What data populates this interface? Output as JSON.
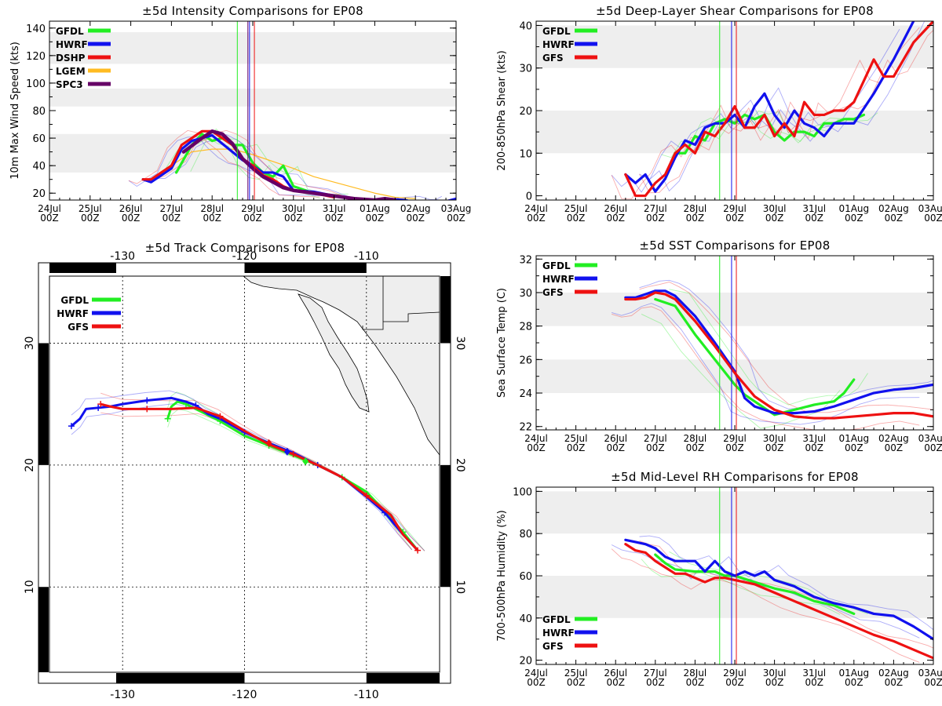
{
  "colors": {
    "GFDL": "#22ee22",
    "HWRF": "#1111ee",
    "DSHP": "#ee1111",
    "GFS": "#ee1111",
    "LGEM": "#ffbb22",
    "SPC3": "#660066",
    "band": "#eeeeee"
  },
  "time_axis": {
    "days": [
      "24Jul",
      "25Jul",
      "26Jul",
      "27Jul",
      "28Jul",
      "29Jul",
      "30Jul",
      "31Jul",
      "01Aug",
      "02Aug",
      "03Aug"
    ],
    "hour": "00Z",
    "domain": [
      0,
      10
    ],
    "marker_lines": [
      {
        "model": "GFDL",
        "t": 4.62
      },
      {
        "model": "SPC3",
        "t": 4.88
      },
      {
        "model": "HWRF",
        "t": 4.92
      },
      {
        "model": "DSHP",
        "t": 5.04
      }
    ]
  },
  "chart_data": [
    {
      "id": "intensity",
      "type": "line",
      "title": "±5d Intensity Comparisons for EP08",
      "ylabel": "10m Max Wind Speed (kts)",
      "ylim": [
        15,
        145
      ],
      "yticks": [
        "20",
        "40",
        "60",
        "80",
        "100",
        "120",
        "140"
      ],
      "bands": [
        [
          35,
          63
        ],
        [
          83,
          96
        ],
        [
          114,
          137
        ]
      ],
      "legend": [
        "GFDL",
        "HWRF",
        "DSHP",
        "LGEM",
        "SPC3"
      ],
      "series": [
        {
          "name": "GFDL",
          "x": [
            3.12,
            3.5,
            3.75,
            4,
            4.25,
            4.5,
            4.75,
            5,
            5.25,
            5.5,
            5.75,
            6,
            6.5,
            7
          ],
          "y": [
            35,
            55,
            63,
            58,
            60,
            55,
            55,
            42,
            35,
            32,
            40,
            25,
            20,
            18
          ]
        },
        {
          "name": "HWRF",
          "x": [
            2.3,
            2.5,
            3,
            3.25,
            3.5,
            3.75,
            4,
            4.25,
            4.5,
            4.75,
            5,
            5.25,
            5.5,
            5.75,
            6,
            6.5,
            7,
            7.5,
            8,
            8.25,
            8.75,
            9,
            9.75,
            10
          ],
          "y": [
            30,
            28,
            38,
            52,
            58,
            60,
            62,
            56,
            50,
            44,
            40,
            35,
            35,
            32,
            22,
            21,
            18,
            16,
            15,
            16,
            15,
            13,
            14,
            16
          ]
        },
        {
          "name": "DSHP",
          "x": [
            2.3,
            2.5,
            3,
            3.25,
            3.5,
            3.75,
            4,
            4.25,
            4.5,
            4.75,
            5,
            5.25,
            5.5,
            5.75,
            6,
            6.5,
            7
          ],
          "y": [
            30,
            30,
            40,
            55,
            60,
            65,
            65,
            60,
            55,
            45,
            40,
            33,
            30,
            25,
            22,
            20,
            17
          ]
        },
        {
          "name": "LGEM",
          "x": [
            3,
            3.5,
            4,
            4.5,
            5,
            5.5,
            6,
            6.5,
            7,
            7.5,
            8,
            8.5,
            9
          ],
          "y": [
            40,
            50,
            52,
            52,
            48,
            43,
            38,
            32,
            28,
            24,
            20,
            17,
            16
          ]
        },
        {
          "name": "SPC3",
          "x": [
            3.3,
            3.75,
            4,
            4.25,
            4.5,
            4.75,
            5,
            5.25,
            5.5,
            5.75,
            6,
            6.5,
            7,
            7.5,
            8,
            8.25,
            8.5
          ],
          "y": [
            50,
            60,
            65,
            63,
            56,
            45,
            38,
            32,
            28,
            24,
            22,
            20,
            18,
            16,
            15,
            16,
            15
          ]
        }
      ]
    },
    {
      "id": "shear",
      "type": "line",
      "title": "±5d Deep-Layer Shear Comparisons for EP08",
      "ylabel": "200-850hPa Shear (kts)",
      "ylim": [
        -1,
        41
      ],
      "yticks": [
        "0",
        "10",
        "20",
        "30",
        "40"
      ],
      "bands": [
        [
          10,
          20
        ],
        [
          30,
          40
        ]
      ],
      "legend": [
        "GFDL",
        "HWRF",
        "GFS"
      ],
      "series": [
        {
          "name": "GFDL",
          "x": [
            3.5,
            3.75,
            4,
            4.25,
            4.5,
            4.75,
            5,
            5.25,
            5.5,
            5.75,
            6,
            6.25,
            6.5,
            6.75,
            7,
            7.25,
            7.5,
            7.75,
            8,
            8.25
          ],
          "y": [
            10,
            10,
            14,
            13,
            17,
            18,
            17,
            19,
            18,
            19,
            15,
            13,
            15,
            15,
            14,
            17,
            17,
            18,
            18,
            19
          ]
        },
        {
          "name": "HWRF",
          "x": [
            2.25,
            2.5,
            2.75,
            3,
            3.25,
            3.5,
            3.75,
            4,
            4.25,
            4.5,
            4.75,
            5,
            5.25,
            5.5,
            5.75,
            6,
            6.25,
            6.5,
            6.75,
            7,
            7.25,
            7.5,
            7.75,
            8,
            8.5,
            9,
            9.5
          ],
          "y": [
            5,
            3,
            5,
            1,
            4,
            9,
            13,
            12,
            16,
            17,
            17,
            19,
            16,
            21,
            24,
            19,
            16,
            20,
            17,
            16,
            14,
            17,
            17,
            17,
            24,
            32,
            41
          ]
        },
        {
          "name": "GFS",
          "x": [
            2.25,
            2.5,
            2.75,
            3,
            3.25,
            3.5,
            3.75,
            4,
            4.25,
            4.5,
            4.75,
            5,
            5.25,
            5.5,
            5.75,
            6,
            6.25,
            6.5,
            6.75,
            7,
            7.25,
            7.5,
            7.75,
            8,
            8.5,
            8.75,
            9,
            9.5,
            10
          ],
          "y": [
            5,
            0,
            0,
            3,
            5,
            10,
            12,
            10,
            15,
            14,
            17,
            21,
            16,
            16,
            19,
            14,
            17,
            14,
            22,
            19,
            19,
            20,
            20,
            22,
            32,
            28,
            28,
            36,
            41
          ]
        }
      ]
    },
    {
      "id": "sst",
      "type": "line",
      "title": "±5d SST Comparisons for EP08",
      "ylabel": "Sea Surface Temp (C)",
      "ylim": [
        21.8,
        32.2
      ],
      "yticks": [
        "22",
        "24",
        "26",
        "28",
        "30",
        "32"
      ],
      "bands": [
        [
          24,
          26
        ],
        [
          28,
          30
        ]
      ],
      "legend": [
        "GFDL",
        "HWRF",
        "GFS"
      ],
      "series": [
        {
          "name": "GFDL",
          "x": [
            3,
            3.5,
            4,
            4.5,
            5,
            5.25,
            5.5,
            6,
            6.5,
            7,
            7.5,
            7.75,
            8
          ],
          "y": [
            29.6,
            29.2,
            27.5,
            26,
            24.5,
            23.9,
            23.5,
            22.7,
            23,
            23.3,
            23.5,
            24.0,
            24.8
          ]
        },
        {
          "name": "HWRF",
          "x": [
            2.25,
            2.5,
            2.75,
            3,
            3.25,
            3.5,
            4,
            4.5,
            5,
            5.25,
            5.5,
            6,
            6.5,
            7,
            7.5,
            8,
            8.5,
            9,
            9.5,
            10
          ],
          "y": [
            29.7,
            29.7,
            29.9,
            30.1,
            30.1,
            29.8,
            28.6,
            27,
            25.3,
            23.7,
            23.2,
            22.8,
            22.8,
            22.9,
            23.2,
            23.6,
            24.0,
            24.2,
            24.3,
            24.5
          ]
        },
        {
          "name": "GFS",
          "x": [
            2.25,
            2.5,
            2.75,
            3,
            3.25,
            3.5,
            4,
            4.5,
            5,
            5.5,
            6,
            6.5,
            7,
            7.5,
            8,
            8.5,
            9,
            9.5,
            10
          ],
          "y": [
            29.6,
            29.6,
            29.7,
            30.0,
            29.9,
            29.6,
            28.3,
            26.8,
            25.2,
            23.8,
            23.0,
            22.6,
            22.5,
            22.5,
            22.6,
            22.7,
            22.8,
            22.8,
            22.6
          ]
        }
      ]
    },
    {
      "id": "rh",
      "type": "line",
      "title": "±5d Mid-Level RH Comparisons for EP08",
      "ylabel": "700-500hPa Humidity (%)",
      "ylim": [
        18,
        102
      ],
      "yticks": [
        "20",
        "40",
        "60",
        "80",
        "100"
      ],
      "bands": [
        [
          40,
          60
        ],
        [
          80,
          100
        ]
      ],
      "legend": [
        "GFDL",
        "HWRF",
        "GFS"
      ],
      "series": [
        {
          "name": "GFDL",
          "x": [
            3,
            3.25,
            3.5,
            4,
            4.5,
            4.75,
            5,
            5.5,
            6,
            6.5,
            7,
            7.5,
            8
          ],
          "y": [
            70,
            66,
            63,
            62,
            62,
            60,
            60,
            57,
            54,
            52,
            48,
            46,
            42
          ]
        },
        {
          "name": "HWRF",
          "x": [
            2.25,
            2.5,
            2.75,
            3,
            3.25,
            3.5,
            3.75,
            4,
            4.25,
            4.5,
            4.75,
            5,
            5.25,
            5.5,
            5.75,
            6,
            6.5,
            7,
            7.5,
            8,
            8.5,
            9,
            9.5,
            10
          ],
          "y": [
            77,
            76,
            75,
            73,
            69,
            67,
            67,
            67,
            62,
            67,
            62,
            60,
            62,
            60,
            62,
            58,
            55,
            50,
            47,
            45,
            42,
            41,
            36,
            30
          ]
        },
        {
          "name": "GFS",
          "x": [
            2.25,
            2.5,
            2.75,
            3,
            3.25,
            3.5,
            3.75,
            4,
            4.25,
            4.5,
            4.75,
            5,
            5.5,
            6,
            6.5,
            7,
            7.5,
            8,
            8.5,
            9,
            9.5,
            10
          ],
          "y": [
            75,
            72,
            71,
            67,
            64,
            61,
            61,
            59,
            57,
            59,
            59,
            58,
            56,
            52,
            48,
            44,
            40,
            36,
            32,
            29,
            25,
            21
          ]
        }
      ]
    },
    {
      "id": "track",
      "type": "line",
      "title": "±5d Track Comparisons for EP08",
      "xlim": [
        -136,
        -104
      ],
      "ylim": [
        3,
        35.5
      ],
      "lon_ticks": [
        "-130",
        "-120",
        "-110"
      ],
      "lat_ticks": [
        "10",
        "20",
        "30"
      ],
      "legend": [
        "GFDL",
        "HWRF",
        "GFS"
      ],
      "series": [
        {
          "name": "GFDL",
          "lon": [
            -126.3,
            -126,
            -125.5,
            -124.8,
            -124,
            -123,
            -122,
            -121,
            -120,
            -118,
            -116,
            -114,
            -112,
            -110,
            -108.5,
            -107,
            -105.8
          ],
          "lat": [
            23.8,
            24.8,
            25.2,
            25,
            24.6,
            24.1,
            23.6,
            23,
            22.4,
            21.6,
            20.8,
            20,
            19,
            17.8,
            16.2,
            14.5,
            13
          ]
        },
        {
          "name": "HWRF",
          "lon": [
            -134.2,
            -133.5,
            -133,
            -132,
            -131,
            -130,
            -128,
            -126,
            -124.8,
            -124,
            -123,
            -122,
            -120,
            -118,
            -116,
            -114,
            -112,
            -110,
            -108.5,
            -107,
            -105.8
          ],
          "lat": [
            23.2,
            23.8,
            24.6,
            24.7,
            24.8,
            25,
            25.3,
            25.5,
            25.2,
            24.9,
            24.2,
            23.8,
            22.7,
            21.8,
            21,
            20,
            19,
            17.4,
            16.1,
            14.3,
            13
          ]
        },
        {
          "name": "GFS",
          "lon": [
            -131.8,
            -131,
            -130,
            -128,
            -126,
            -124,
            -122,
            -120,
            -118,
            -116,
            -114,
            -112,
            -110,
            -108,
            -107,
            -105.8
          ],
          "lat": [
            25,
            24.8,
            24.6,
            24.6,
            24.6,
            24.7,
            24,
            22.8,
            21.7,
            20.9,
            20,
            19,
            17.5,
            15.9,
            14.3,
            13
          ]
        }
      ]
    }
  ]
}
